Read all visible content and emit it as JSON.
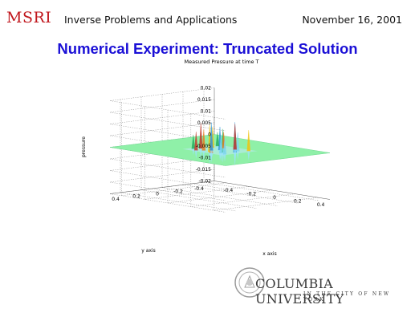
{
  "header": {
    "logo_text": "MSRI",
    "title": "Inverse Problems and Applications",
    "date": "November 16, 2001"
  },
  "slide": {
    "title": "Numerical Experiment: Truncated Solution"
  },
  "chart_data": {
    "type": "surface",
    "title": "Measured Pressure at time T",
    "xlabel": "x axis",
    "ylabel": "y axis",
    "zlabel": "pressure",
    "x_ticks": [
      "-0.4",
      "-0.2",
      "0",
      "0.2",
      "0.4"
    ],
    "y_ticks": [
      "-0.4",
      "-0.2",
      "0",
      "0.2",
      "0.4"
    ],
    "z_ticks": [
      "-0.02",
      "-0.015",
      "-0.01",
      "-0.005",
      "0",
      "0.005",
      "0.01",
      "0.015",
      "0.02"
    ],
    "xlim": [
      -0.5,
      0.5
    ],
    "ylim": [
      -0.5,
      0.5
    ],
    "zlim": [
      -0.02,
      0.02
    ],
    "grid": true,
    "surface_color": "#8ff0a8",
    "spike_colors": [
      "#c0392b",
      "#e67e22",
      "#f1c40f",
      "#27ae60",
      "#3498db",
      "#7ed6f0"
    ],
    "spikes": [
      {
        "x": -0.12,
        "y": 0.05,
        "z": 0.011
      },
      {
        "x": -0.05,
        "y": 0.1,
        "z": 0.009
      },
      {
        "x": 0.02,
        "y": 0.12,
        "z": 0.012
      },
      {
        "x": 0.08,
        "y": 0.06,
        "z": 0.01
      },
      {
        "x": 0.13,
        "y": 0.0,
        "z": 0.013
      },
      {
        "x": 0.1,
        "y": -0.06,
        "z": 0.008
      },
      {
        "x": 0.04,
        "y": -0.1,
        "z": 0.011
      },
      {
        "x": -0.04,
        "y": -0.08,
        "z": 0.007
      },
      {
        "x": -0.1,
        "y": -0.04,
        "z": 0.009
      },
      {
        "x": -0.14,
        "y": 0.1,
        "z": 0.006
      },
      {
        "x": 0.0,
        "y": 0.0,
        "z": 0.01
      },
      {
        "x": 0.15,
        "y": 0.12,
        "z": 0.007
      },
      {
        "x": -0.08,
        "y": 0.14,
        "z": 0.008
      },
      {
        "x": 0.06,
        "y": 0.15,
        "z": 0.006
      },
      {
        "x": 0.14,
        "y": -0.12,
        "z": 0.009
      },
      {
        "x": -0.13,
        "y": -0.12,
        "z": 0.006
      },
      {
        "x": -0.02,
        "y": 0.06,
        "z": 0.012
      },
      {
        "x": 0.1,
        "y": 0.1,
        "z": 0.008
      }
    ]
  },
  "footer": {
    "university_name": "COLUMBIA UNIVERSITY",
    "university_sub": "IN THE CITY OF NEW YORK"
  }
}
